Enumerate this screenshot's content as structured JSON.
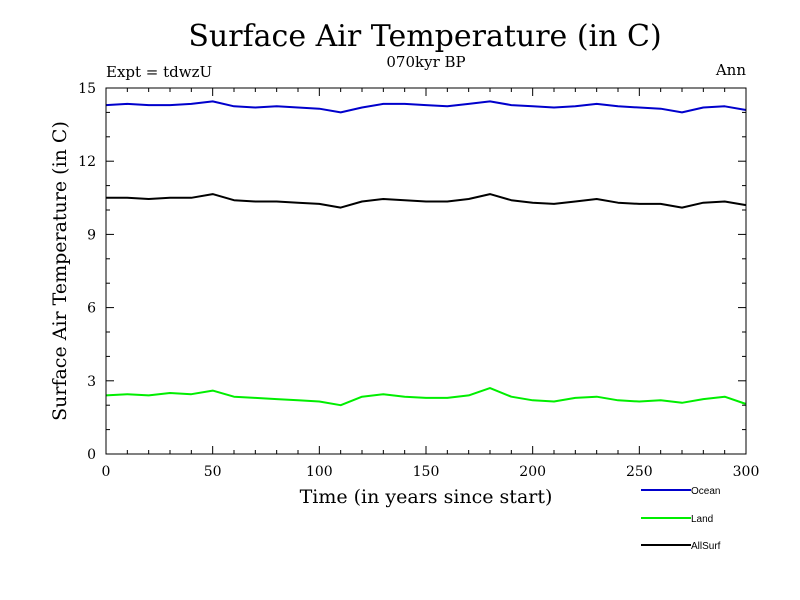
{
  "chart_data": {
    "type": "line",
    "title": "Surface Air Temperature (in C)",
    "subtitle": "070kyr BP",
    "left_note": "Expt = tdwzU",
    "right_note": "Ann",
    "xlabel": "Time (in years since start)",
    "ylabel": "Surface Air Temperature (in C)",
    "xlim": [
      0,
      300
    ],
    "ylim": [
      0,
      15
    ],
    "xticks": [
      0,
      50,
      100,
      150,
      200,
      250,
      300
    ],
    "yticks": [
      0,
      3,
      6,
      9,
      12,
      15
    ],
    "legend_position": "bottom-right, below plot",
    "grid": false,
    "x": [
      0,
      10,
      20,
      30,
      40,
      50,
      60,
      70,
      80,
      90,
      100,
      110,
      120,
      130,
      140,
      150,
      160,
      170,
      180,
      190,
      200,
      210,
      220,
      230,
      240,
      250,
      260,
      270,
      280,
      290,
      300
    ],
    "series": [
      {
        "name": "Ocean",
        "color": "#0000cc",
        "values": [
          14.3,
          14.35,
          14.3,
          14.3,
          14.35,
          14.45,
          14.25,
          14.2,
          14.25,
          14.2,
          14.15,
          14.0,
          14.2,
          14.35,
          14.35,
          14.3,
          14.25,
          14.35,
          14.45,
          14.3,
          14.25,
          14.2,
          14.25,
          14.35,
          14.25,
          14.2,
          14.15,
          14.0,
          14.2,
          14.25,
          14.1
        ]
      },
      {
        "name": "Land",
        "color": "#00ee00",
        "values": [
          2.4,
          2.45,
          2.4,
          2.5,
          2.45,
          2.6,
          2.35,
          2.3,
          2.25,
          2.2,
          2.15,
          2.0,
          2.35,
          2.45,
          2.35,
          2.3,
          2.3,
          2.4,
          2.7,
          2.35,
          2.2,
          2.15,
          2.3,
          2.35,
          2.2,
          2.15,
          2.2,
          2.1,
          2.25,
          2.35,
          2.05
        ]
      },
      {
        "name": "AllSurf",
        "color": "#000000",
        "values": [
          10.5,
          10.5,
          10.45,
          10.5,
          10.5,
          10.65,
          10.4,
          10.35,
          10.35,
          10.3,
          10.25,
          10.1,
          10.35,
          10.45,
          10.4,
          10.35,
          10.35,
          10.45,
          10.65,
          10.4,
          10.3,
          10.25,
          10.35,
          10.45,
          10.3,
          10.25,
          10.25,
          10.1,
          10.3,
          10.35,
          10.2
        ]
      }
    ]
  }
}
